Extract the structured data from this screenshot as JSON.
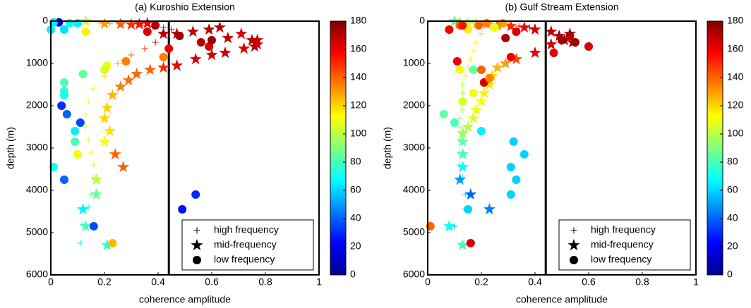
{
  "chart_data": [
    {
      "type": "scatter",
      "title": "(a) Kuroshio Extension",
      "xlabel": "coherence amplitude",
      "ylabel": "depth (m)",
      "xlim": [
        0,
        1
      ],
      "xticks": [
        0,
        0.2,
        0.4,
        0.6,
        0.8,
        1
      ],
      "ylim": [
        0,
        6000
      ],
      "yticks": [
        0,
        1000,
        2000,
        3000,
        4000,
        5000,
        6000
      ],
      "y_inverted": true,
      "clim": [
        0,
        180
      ],
      "cticks": [
        0,
        20,
        40,
        60,
        80,
        100,
        120,
        140,
        160,
        180
      ],
      "colormap": "jet",
      "reference_line_x": 0.44,
      "legend": "lower right",
      "series": [
        {
          "name": "high frequency",
          "marker": "plus",
          "x": [
            0.1,
            0.14,
            0.18,
            0.22,
            0.26,
            0.3,
            0.34,
            0.38,
            0.42,
            0.45,
            0.42,
            0.39,
            0.35,
            0.3,
            0.25,
            0.2,
            0.16,
            0.14,
            0.13,
            0.13,
            0.14,
            0.15,
            0.16,
            0.16,
            0.15,
            0.14,
            0.12,
            0.11
          ],
          "values": [
            20,
            40,
            50,
            60,
            70,
            80,
            100,
            120,
            150,
            200,
            300,
            500,
            650,
            800,
            1000,
            1300,
            1600,
            1900,
            2200,
            2500,
            2800,
            3100,
            3400,
            3700,
            4100,
            4400,
            4800,
            5250
          ],
          "c": [
            95,
            110,
            120,
            130,
            140,
            150,
            155,
            160,
            165,
            170,
            165,
            160,
            150,
            140,
            130,
            120,
            115,
            110,
            110,
            105,
            110,
            110,
            105,
            100,
            85,
            75,
            70,
            65
          ]
        },
        {
          "name": "mid-frequency",
          "marker": "star",
          "x": [
            0.13,
            0.2,
            0.26,
            0.3,
            0.33,
            0.36,
            0.42,
            0.47,
            0.53,
            0.59,
            0.63,
            0.66,
            0.71,
            0.75,
            0.77,
            0.77,
            0.76,
            0.72,
            0.65,
            0.6,
            0.54,
            0.47,
            0.42,
            0.37,
            0.32,
            0.29,
            0.26,
            0.23,
            0.21,
            0.2,
            0.22,
            0.2,
            0.24,
            0.27,
            0.17,
            0.17,
            0.12,
            0.13,
            0.21
          ],
          "values": [
            0,
            60,
            70,
            80,
            70,
            50,
            300,
            300,
            250,
            200,
            150,
            400,
            300,
            450,
            450,
            550,
            600,
            650,
            750,
            800,
            900,
            1050,
            1100,
            1150,
            1250,
            1400,
            1550,
            1750,
            2050,
            2300,
            2600,
            2850,
            3150,
            3450,
            3750,
            4100,
            4450,
            4850,
            5300
          ],
          "c": [
            100,
            130,
            140,
            150,
            155,
            160,
            170,
            168,
            170,
            172,
            170,
            168,
            165,
            170,
            168,
            165,
            170,
            165,
            168,
            165,
            165,
            160,
            150,
            140,
            140,
            138,
            135,
            125,
            120,
            120,
            118,
            110,
            140,
            140,
            100,
            85,
            65,
            80,
            75
          ]
        },
        {
          "name": "low frequency",
          "marker": "circle",
          "x": [
            0.03,
            0.01,
            0.0,
            0.05,
            0.07,
            0.1,
            0.13,
            0.36,
            0.39,
            0.44,
            0.48,
            0.56,
            0.59,
            0.6,
            0.42,
            0.28,
            0.21,
            0.2,
            0.12,
            0.05,
            0.05,
            0.05,
            0.04,
            0.06,
            0.11,
            0.09,
            0.09,
            0.1,
            0.01,
            0.05,
            0.54,
            0.49,
            0.16,
            0.23
          ],
          "values": [
            30,
            30,
            200,
            200,
            50,
            50,
            250,
            250,
            100,
            650,
            350,
            500,
            600,
            450,
            850,
            950,
            1050,
            1150,
            1250,
            1450,
            1650,
            1750,
            2000,
            2200,
            2400,
            2600,
            2850,
            3150,
            3450,
            3750,
            4100,
            4450,
            4850,
            5250
          ],
          "c": [
            20,
            65,
            65,
            62,
            68,
            65,
            115,
            165,
            172,
            160,
            175,
            170,
            165,
            175,
            135,
            135,
            110,
            105,
            85,
            80,
            75,
            70,
            30,
            40,
            35,
            65,
            80,
            110,
            70,
            40,
            30,
            25,
            35,
            125
          ]
        }
      ]
    },
    {
      "type": "scatter",
      "title": "(b) Gulf Stream Extension",
      "xlabel": "coherence amplitude",
      "ylabel": "depth (m)",
      "xlim": [
        0,
        1
      ],
      "xticks": [
        0,
        0.2,
        0.4,
        0.6,
        0.8,
        1
      ],
      "ylim": [
        0,
        6000
      ],
      "yticks": [
        0,
        1000,
        2000,
        3000,
        4000,
        5000,
        6000
      ],
      "y_inverted": true,
      "clim": [
        0,
        180
      ],
      "cticks": [
        0,
        20,
        40,
        60,
        80,
        100,
        120,
        140,
        160,
        180
      ],
      "colormap": "jet",
      "reference_line_x": 0.44,
      "legend": "lower right",
      "series": [
        {
          "name": "high frequency",
          "marker": "plus",
          "x": [
            0.1,
            0.14,
            0.18,
            0.22,
            0.26,
            0.3,
            0.34,
            0.38,
            0.2,
            0.18,
            0.17,
            0.16,
            0.15,
            0.14,
            0.13,
            0.13,
            0.13,
            0.13,
            0.12,
            0.12,
            0.12,
            0.12,
            0.12,
            0.13,
            0.14,
            0.14,
            0.1,
            0.13
          ],
          "values": [
            30,
            40,
            50,
            60,
            80,
            100,
            120,
            150,
            300,
            500,
            700,
            900,
            1100,
            1300,
            1500,
            1700,
            1900,
            2100,
            2300,
            2500,
            2800,
            3100,
            3400,
            3700,
            4100,
            4450,
            4850,
            5250
          ],
          "c": [
            90,
            110,
            120,
            130,
            140,
            150,
            155,
            160,
            120,
            115,
            112,
            110,
            108,
            105,
            100,
            100,
            100,
            98,
            95,
            90,
            85,
            80,
            75,
            70,
            65,
            60,
            55,
            60
          ]
        },
        {
          "name": "mid-frequency",
          "marker": "star",
          "x": [
            0.1,
            0.12,
            0.15,
            0.18,
            0.22,
            0.26,
            0.31,
            0.36,
            0.4,
            0.46,
            0.49,
            0.51,
            0.53,
            0.54,
            0.46,
            0.4,
            0.33,
            0.29,
            0.26,
            0.24,
            0.23,
            0.21,
            0.2,
            0.18,
            0.17,
            0.15,
            0.13,
            0.13,
            0.13,
            0.13,
            0.12,
            0.16,
            0.23,
            0.08,
            0.13
          ],
          "values": [
            0,
            30,
            50,
            60,
            70,
            100,
            120,
            150,
            200,
            250,
            350,
            450,
            300,
            500,
            550,
            750,
            900,
            1000,
            1100,
            1300,
            1500,
            1700,
            1900,
            2100,
            2300,
            2500,
            2650,
            2850,
            3150,
            3450,
            3750,
            4100,
            4450,
            4850,
            5300
          ],
          "c": [
            85,
            95,
            100,
            105,
            130,
            140,
            150,
            160,
            165,
            170,
            172,
            175,
            170,
            172,
            165,
            162,
            145,
            130,
            125,
            120,
            118,
            115,
            112,
            110,
            105,
            100,
            95,
            85,
            80,
            70,
            50,
            40,
            45,
            70,
            80
          ]
        },
        {
          "name": "low frequency",
          "marker": "circle",
          "x": [
            0.08,
            0.12,
            0.15,
            0.19,
            0.22,
            0.25,
            0.28,
            0.13,
            0.29,
            0.33,
            0.47,
            0.5,
            0.53,
            0.55,
            0.6,
            0.11,
            0.12,
            0.17,
            0.2,
            0.21,
            0.23,
            0.31,
            0.17,
            0.13,
            0.06,
            0.1,
            0.2,
            0.32,
            0.36,
            0.31,
            0.33,
            0.31,
            0.15,
            0.01,
            0.16
          ],
          "values": [
            200,
            100,
            200,
            100,
            50,
            150,
            50,
            100,
            400,
            250,
            750,
            450,
            350,
            500,
            600,
            950,
            1150,
            1150,
            1150,
            1450,
            1350,
            850,
            1700,
            1900,
            2200,
            2400,
            2600,
            2850,
            3150,
            3450,
            3750,
            4100,
            4450,
            4850,
            5250
          ],
          "c": [
            160,
            140,
            115,
            140,
            135,
            110,
            130,
            155,
            172,
            165,
            162,
            175,
            172,
            175,
            165,
            160,
            110,
            85,
            140,
            165,
            135,
            160,
            110,
            105,
            85,
            80,
            65,
            60,
            60,
            60,
            60,
            60,
            60,
            140,
            165
          ]
        }
      ]
    }
  ]
}
